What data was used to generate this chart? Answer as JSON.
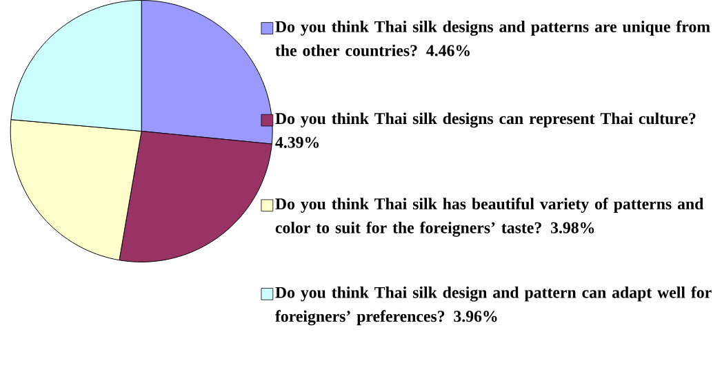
{
  "chart_data": {
    "type": "pie",
    "categories": [
      "Do you think Thai silk designs and patterns are unique from the other countries?",
      "Do you think Thai silk designs can represent Thai culture?",
      "Do you think Thai silk has beautiful variety of patterns and color to suit for the foreigners’ taste?",
      "Do you think Thai silk design and pattern can adapt well for foreigners’ preferences?"
    ],
    "values": [
      4.46,
      4.39,
      3.98,
      3.96
    ],
    "value_labels": [
      "4.46%",
      "4.39%",
      "3.98%",
      "3.96%"
    ],
    "colors": [
      "#9999ff",
      "#993366",
      "#ffffcc",
      "#ccffff"
    ],
    "legend": "right"
  }
}
